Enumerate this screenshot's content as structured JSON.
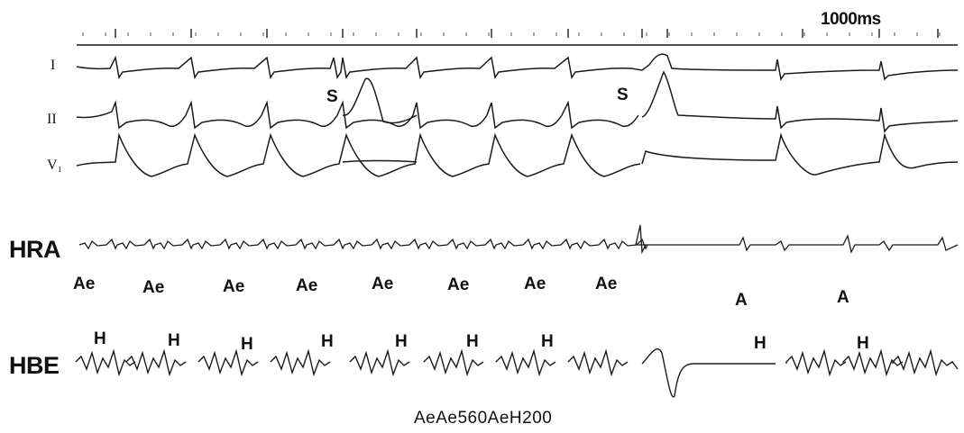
{
  "scale_label": "1000ms",
  "leads": {
    "lead_i": "I",
    "lead_ii": "II",
    "lead_v1": "V₁",
    "hra": "HRA",
    "hbe": "HBE"
  },
  "stimulus_markers": [
    "S",
    "S"
  ],
  "hra_markers": [
    "Ae",
    "Ae",
    "Ae",
    "Ae",
    "Ae",
    "Ae",
    "Ae",
    "Ae",
    "A",
    "A"
  ],
  "hbe_markers": [
    "H",
    "H",
    "H",
    "H",
    "H",
    "H",
    "H",
    "H",
    "H"
  ],
  "caption": "AeAe560AeH200",
  "colors": {
    "background": "#ffffff",
    "trace": "#1a1a1a"
  }
}
